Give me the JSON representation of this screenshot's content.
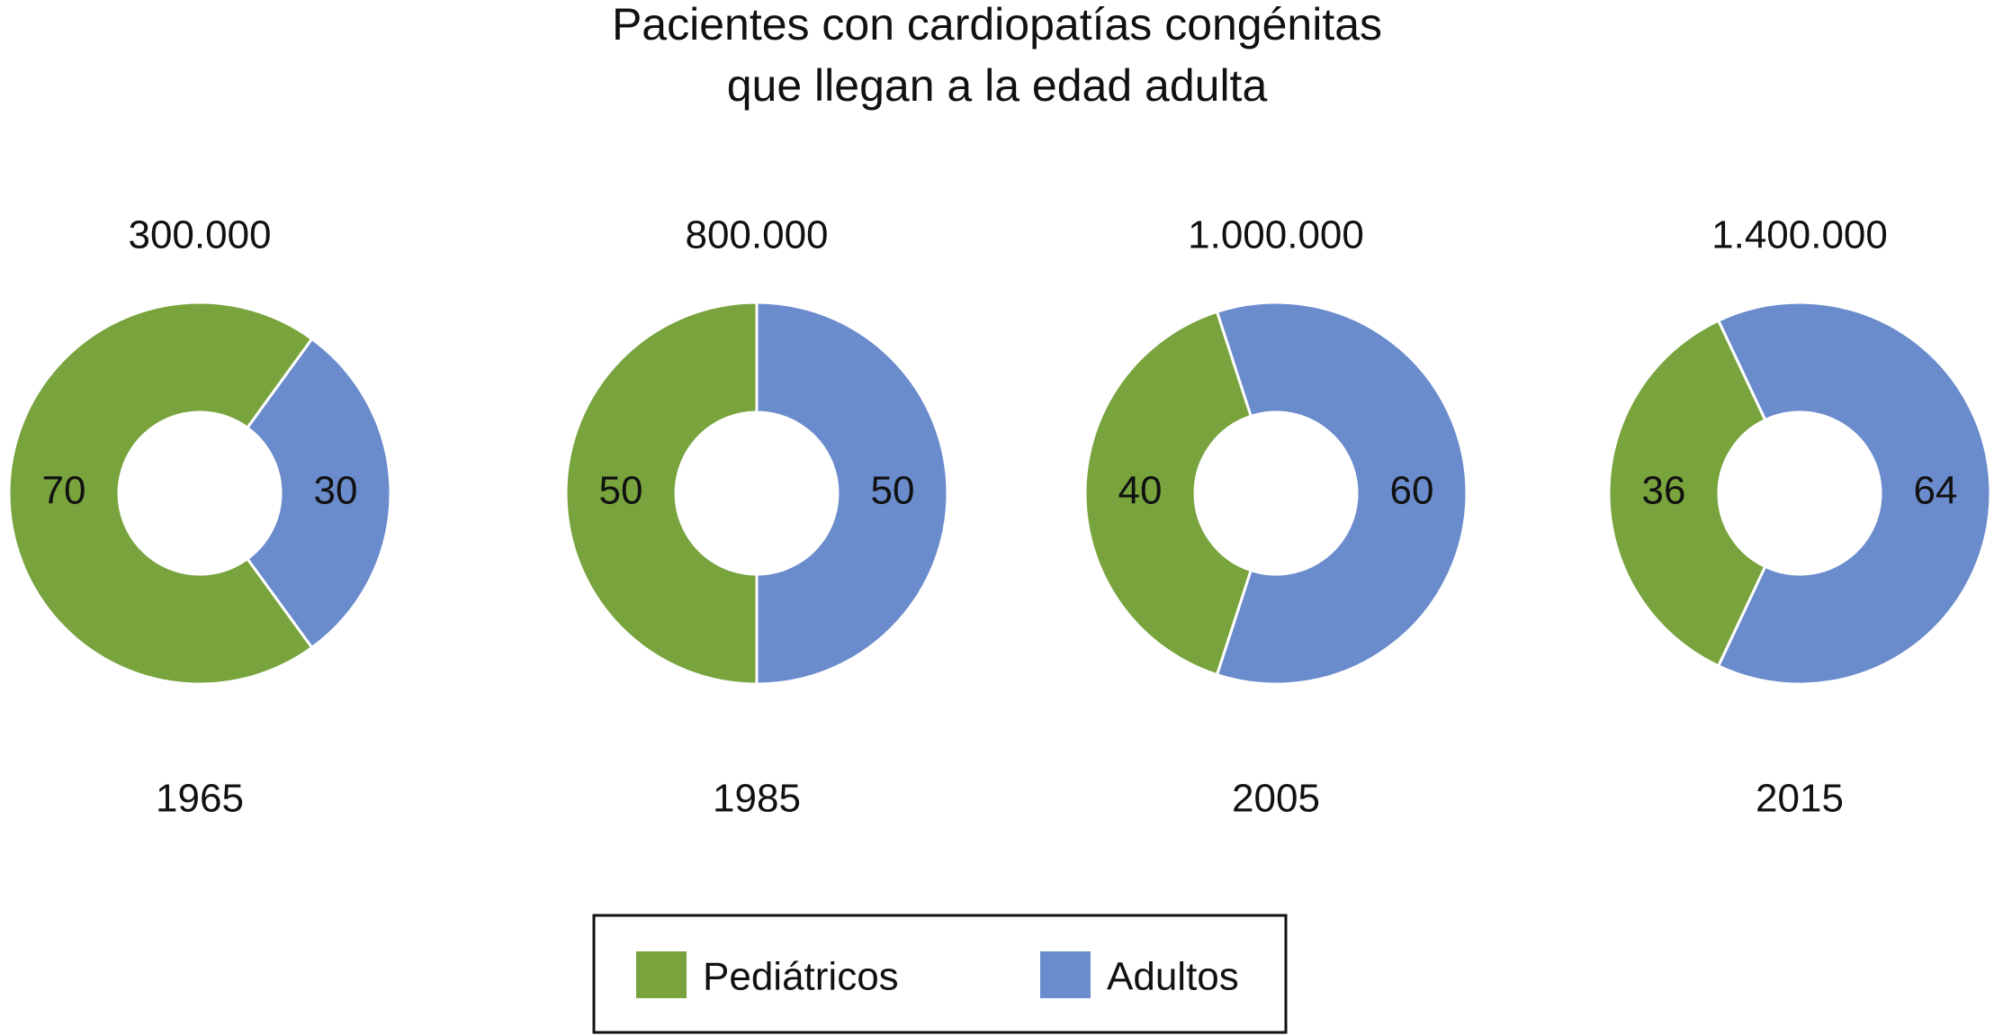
{
  "title": [
    "Pacientes con cardiopatías congénitas",
    "que llegan a la edad adulta"
  ],
  "chart_data": [
    {
      "type": "pie",
      "donut": true,
      "title": "300.000",
      "xlabel": "1965",
      "categories": [
        "Pediátricos",
        "Adultos"
      ],
      "values": [
        70,
        30
      ],
      "colors": [
        "#78a33d",
        "#6a8bcc"
      ]
    },
    {
      "type": "pie",
      "donut": true,
      "title": "800.000",
      "xlabel": "1985",
      "categories": [
        "Pediátricos",
        "Adultos"
      ],
      "values": [
        50,
        50
      ],
      "colors": [
        "#78a33d",
        "#6a8bcc"
      ]
    },
    {
      "type": "pie",
      "donut": true,
      "title": "1.000.000",
      "xlabel": "2005",
      "categories": [
        "Pediátricos",
        "Adultos"
      ],
      "values": [
        40,
        60
      ],
      "colors": [
        "#78a33d",
        "#6a8bcc"
      ]
    },
    {
      "type": "pie",
      "donut": true,
      "title": "1.400.000",
      "xlabel": "2015",
      "categories": [
        "Pediátricos",
        "Adultos"
      ],
      "values": [
        36,
        64
      ],
      "colors": [
        "#78a33d",
        "#6a8bcc"
      ]
    }
  ]
}
